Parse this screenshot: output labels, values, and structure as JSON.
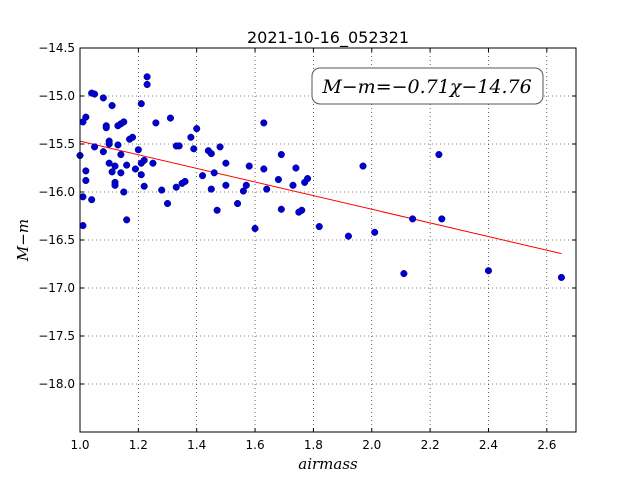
{
  "chart_data": {
    "type": "scatter",
    "title": "2021-10-16_052321",
    "xlabel": "airmass",
    "ylabel": "M−m",
    "xlim": [
      1.0,
      2.7
    ],
    "ylim": [
      -14.5,
      -18.5
    ],
    "y_inverted": true,
    "grid": true,
    "xticks": [
      "1.0",
      "1.2",
      "1.4",
      "1.6",
      "1.8",
      "2.0",
      "2.2",
      "2.4",
      "2.6"
    ],
    "yticks": [
      "−14.5",
      "−15.0",
      "−15.5",
      "−16.0",
      "−16.5",
      "−17.0",
      "−17.5",
      "−18.0"
    ],
    "annotation": "M−m=−0.71χ−14.76",
    "fit": {
      "slope": -0.71,
      "intercept": -14.76,
      "x_range": [
        1.0,
        2.65
      ],
      "color": "#ff0000"
    },
    "point_color": "#0000cc",
    "points": [
      [
        1.0,
        -15.62
      ],
      [
        1.01,
        -16.05
      ],
      [
        1.01,
        -16.35
      ],
      [
        1.01,
        -15.27
      ],
      [
        1.02,
        -15.22
      ],
      [
        1.02,
        -15.78
      ],
      [
        1.02,
        -15.88
      ],
      [
        1.04,
        -14.97
      ],
      [
        1.04,
        -16.08
      ],
      [
        1.05,
        -14.98
      ],
      [
        1.05,
        -15.53
      ],
      [
        1.08,
        -15.02
      ],
      [
        1.08,
        -15.58
      ],
      [
        1.09,
        -15.31
      ],
      [
        1.09,
        -15.33
      ],
      [
        1.1,
        -15.5
      ],
      [
        1.1,
        -15.47
      ],
      [
        1.1,
        -15.7
      ],
      [
        1.11,
        -15.1
      ],
      [
        1.11,
        -15.79
      ],
      [
        1.12,
        -15.73
      ],
      [
        1.12,
        -15.9
      ],
      [
        1.12,
        -15.93
      ],
      [
        1.13,
        -15.51
      ],
      [
        1.13,
        -15.31
      ],
      [
        1.14,
        -15.29
      ],
      [
        1.14,
        -15.61
      ],
      [
        1.14,
        -15.8
      ],
      [
        1.15,
        -15.27
      ],
      [
        1.15,
        -16.0
      ],
      [
        1.16,
        -15.72
      ],
      [
        1.16,
        -16.29
      ],
      [
        1.17,
        -15.45
      ],
      [
        1.18,
        -15.43
      ],
      [
        1.19,
        -15.76
      ],
      [
        1.2,
        -15.56
      ],
      [
        1.21,
        -15.08
      ],
      [
        1.21,
        -15.82
      ],
      [
        1.21,
        -15.7
      ],
      [
        1.22,
        -15.94
      ],
      [
        1.22,
        -15.67
      ],
      [
        1.23,
        -14.8
      ],
      [
        1.23,
        -14.88
      ],
      [
        1.25,
        -15.7
      ],
      [
        1.26,
        -15.28
      ],
      [
        1.28,
        -15.98
      ],
      [
        1.3,
        -16.12
      ],
      [
        1.31,
        -15.23
      ],
      [
        1.33,
        -15.52
      ],
      [
        1.33,
        -15.95
      ],
      [
        1.34,
        -15.52
      ],
      [
        1.35,
        -15.91
      ],
      [
        1.36,
        -15.89
      ],
      [
        1.38,
        -15.43
      ],
      [
        1.39,
        -15.55
      ],
      [
        1.4,
        -15.34
      ],
      [
        1.42,
        -15.83
      ],
      [
        1.44,
        -15.57
      ],
      [
        1.45,
        -15.6
      ],
      [
        1.45,
        -15.97
      ],
      [
        1.46,
        -15.8
      ],
      [
        1.47,
        -16.19
      ],
      [
        1.48,
        -15.53
      ],
      [
        1.5,
        -15.93
      ],
      [
        1.5,
        -15.7
      ],
      [
        1.54,
        -16.12
      ],
      [
        1.56,
        -15.99
      ],
      [
        1.57,
        -15.93
      ],
      [
        1.58,
        -15.73
      ],
      [
        1.6,
        -16.38
      ],
      [
        1.63,
        -15.28
      ],
      [
        1.63,
        -15.76
      ],
      [
        1.64,
        -15.97
      ],
      [
        1.68,
        -15.87
      ],
      [
        1.69,
        -15.61
      ],
      [
        1.69,
        -16.18
      ],
      [
        1.73,
        -15.93
      ],
      [
        1.74,
        -15.75
      ],
      [
        1.75,
        -16.21
      ],
      [
        1.76,
        -16.19
      ],
      [
        1.77,
        -15.9
      ],
      [
        1.78,
        -15.86
      ],
      [
        1.82,
        -16.36
      ],
      [
        1.92,
        -16.46
      ],
      [
        1.97,
        -15.73
      ],
      [
        2.01,
        -16.42
      ],
      [
        2.11,
        -16.85
      ],
      [
        2.14,
        -16.28
      ],
      [
        2.23,
        -15.61
      ],
      [
        2.24,
        -16.28
      ],
      [
        2.4,
        -16.82
      ],
      [
        2.65,
        -16.89
      ]
    ]
  }
}
